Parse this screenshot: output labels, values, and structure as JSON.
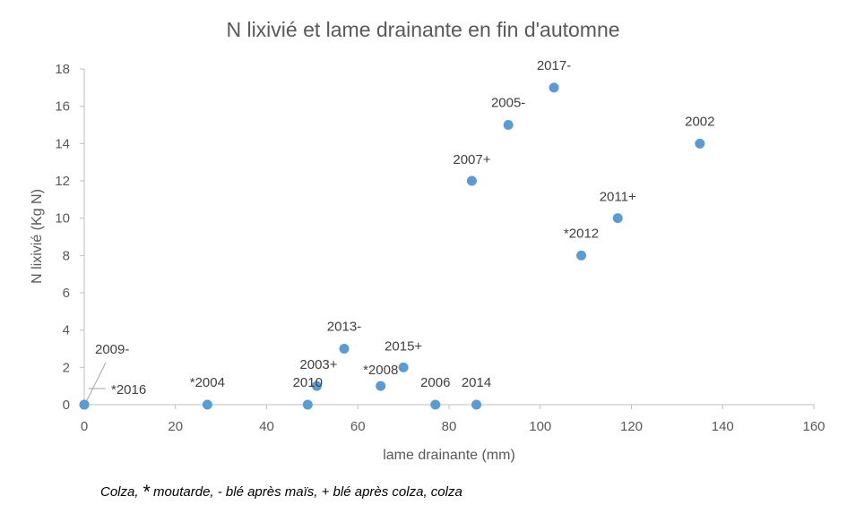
{
  "chart_data": {
    "type": "scatter",
    "title": "N lixivié et lame drainante en fin d'automne",
    "xlabel": "lame drainante (mm)",
    "ylabel": "N lixivié (Kg N)",
    "xlim": [
      0,
      160
    ],
    "ylim": [
      0,
      18
    ],
    "xticks": [
      0,
      20,
      40,
      60,
      80,
      100,
      120,
      140,
      160
    ],
    "yticks": [
      0,
      2,
      4,
      6,
      8,
      10,
      12,
      14,
      16,
      18
    ],
    "grid": false,
    "legend": "none",
    "marker_color": "#5b9bd5",
    "points": [
      {
        "label": "2009-",
        "x": 0,
        "y": 0
      },
      {
        "label": "*2016",
        "x": 0,
        "y": 0
      },
      {
        "label": "*2004",
        "x": 27,
        "y": 0
      },
      {
        "label": "2010",
        "x": 49,
        "y": 0
      },
      {
        "label": "2003+",
        "x": 51,
        "y": 1
      },
      {
        "label": "2013-",
        "x": 57,
        "y": 3
      },
      {
        "label": "*2008",
        "x": 65,
        "y": 1
      },
      {
        "label": "2015+",
        "x": 70,
        "y": 2
      },
      {
        "label": "2006",
        "x": 77,
        "y": 0
      },
      {
        "label": "2014",
        "x": 86,
        "y": 0
      },
      {
        "label": "2007+",
        "x": 85,
        "y": 12
      },
      {
        "label": "2005-",
        "x": 93,
        "y": 15
      },
      {
        "label": "2017-",
        "x": 103,
        "y": 17
      },
      {
        "label": "*2012",
        "x": 109,
        "y": 8
      },
      {
        "label": "2011+",
        "x": 117,
        "y": 10
      },
      {
        "label": "2002",
        "x": 135,
        "y": 14
      }
    ]
  },
  "footnote": {
    "prefix": "Colza, ",
    "star": "*",
    "rest": " moutarde, - blé après maïs, + blé après colza, colza"
  }
}
